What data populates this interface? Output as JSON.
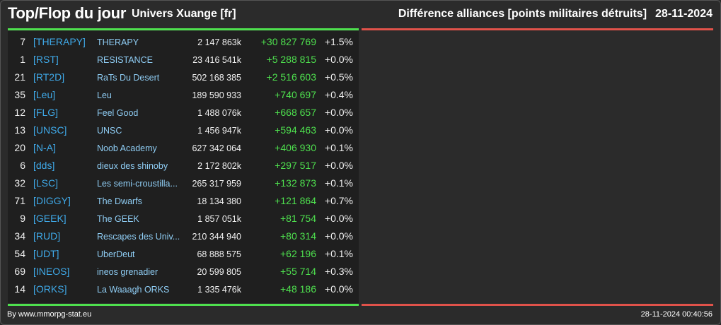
{
  "header": {
    "title": "Top/Flop du jour",
    "universe": "Univers Xuange [fr]",
    "subtitle": "Différence alliances [points militaires détruits]",
    "date": "28-11-2024"
  },
  "colors": {
    "positive": "#4ee04e",
    "negative": "#e0524a",
    "tag": "#3fa9e8",
    "name": "#8fcdf4"
  },
  "top_list": [
    {
      "rank": "7",
      "tag": "[THERAPY]",
      "name": "THERAPY",
      "points": "2 147 863k",
      "diff": "+30 827 769",
      "pct": "+1.5%"
    },
    {
      "rank": "1",
      "tag": "[RST]",
      "name": "RESISTANCE",
      "points": "23 416 541k",
      "diff": "+5 288 815",
      "pct": "+0.0%"
    },
    {
      "rank": "21",
      "tag": "[RT2D]",
      "name": "RaTs Du Desert",
      "points": "502 168 385",
      "diff": "+2 516 603",
      "pct": "+0.5%"
    },
    {
      "rank": "35",
      "tag": "[Leu]",
      "name": "Leu",
      "points": "189 590 933",
      "diff": "+740 697",
      "pct": "+0.4%"
    },
    {
      "rank": "12",
      "tag": "[FLG]",
      "name": "Feel Good",
      "points": "1 488 076k",
      "diff": "+668 657",
      "pct": "+0.0%"
    },
    {
      "rank": "13",
      "tag": "[UNSC]",
      "name": "UNSC",
      "points": "1 456 947k",
      "diff": "+594 463",
      "pct": "+0.0%"
    },
    {
      "rank": "20",
      "tag": "[N-A]",
      "name": "Noob Academy",
      "points": "627 342 064",
      "diff": "+406 930",
      "pct": "+0.1%"
    },
    {
      "rank": "6",
      "tag": "[dds]",
      "name": "dieux des shinoby",
      "points": "2 172 802k",
      "diff": "+297 517",
      "pct": "+0.0%"
    },
    {
      "rank": "32",
      "tag": "[LSC]",
      "name": "Les semi-croustilla...",
      "points": "265 317 959",
      "diff": "+132 873",
      "pct": "+0.1%"
    },
    {
      "rank": "71",
      "tag": "[DIGGY]",
      "name": "The Dwarfs",
      "points": "18 134 380",
      "diff": "+121 864",
      "pct": "+0.7%"
    },
    {
      "rank": "9",
      "tag": "[GEEK]",
      "name": "The GEEK",
      "points": "1 857 051k",
      "diff": "+81 754",
      "pct": "+0.0%"
    },
    {
      "rank": "34",
      "tag": "[RUD]",
      "name": "Rescapes des Univ...",
      "points": "210 344 940",
      "diff": "+80 314",
      "pct": "+0.0%"
    },
    {
      "rank": "54",
      "tag": "[UDT]",
      "name": "UberDeut",
      "points": "68 888 575",
      "diff": "+62 196",
      "pct": "+0.1%"
    },
    {
      "rank": "69",
      "tag": "[INEOS]",
      "name": "ineos grenadier",
      "points": "20 599 805",
      "diff": "+55 714",
      "pct": "+0.3%"
    },
    {
      "rank": "14",
      "tag": "[ORKS]",
      "name": "La Waaagh ORKS",
      "points": "1 335 476k",
      "diff": "+48 186",
      "pct": "+0.0%"
    }
  ],
  "footer": {
    "source": "By www.mmorpg-stat.eu",
    "timestamp": "28-11-2024 00:40:56"
  }
}
